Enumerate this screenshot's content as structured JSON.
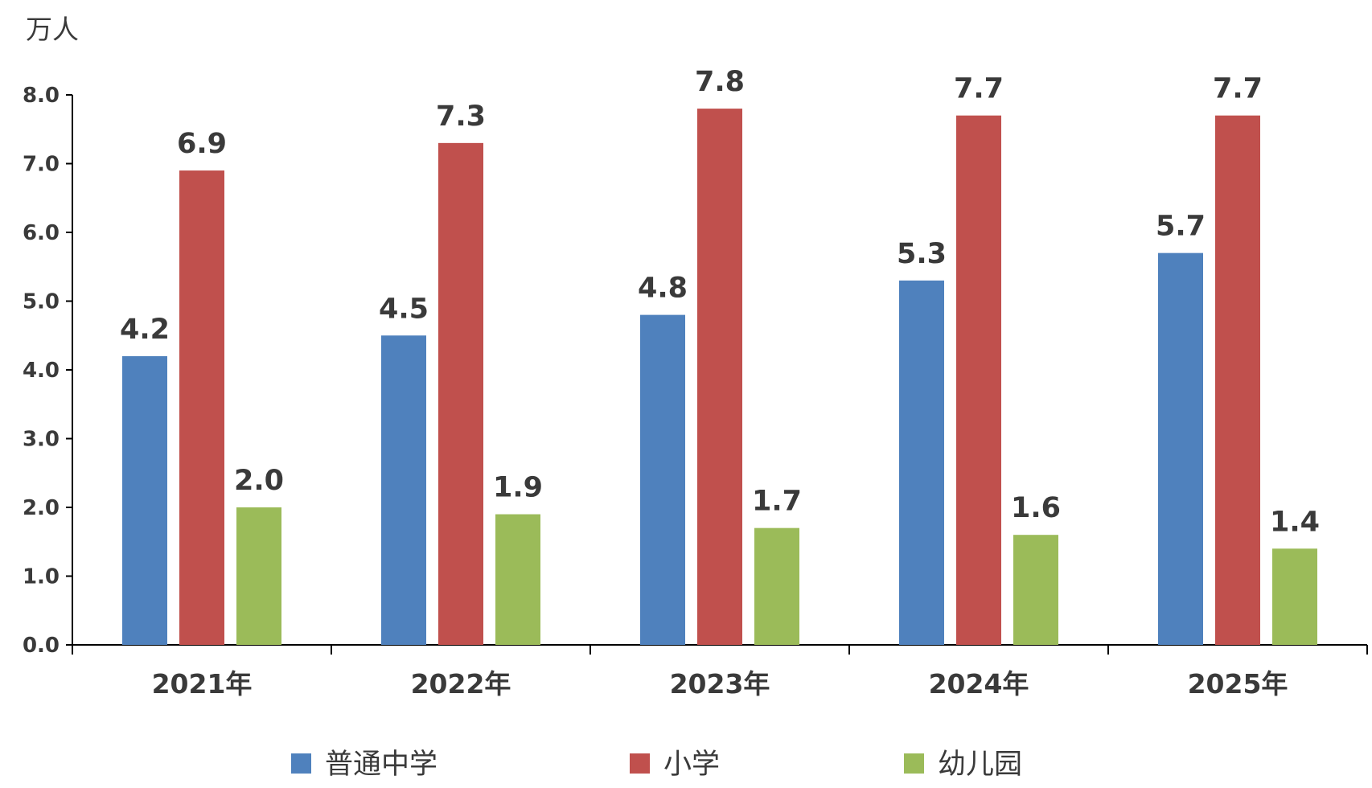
{
  "chart_data": {
    "type": "bar",
    "ylabel": "万人",
    "ylim": [
      0,
      8
    ],
    "yticks": [
      "0.0",
      "1.0",
      "2.0",
      "3.0",
      "4.0",
      "5.0",
      "6.0",
      "7.0",
      "8.0"
    ],
    "categories": [
      "2021年",
      "2022年",
      "2023年",
      "2024年",
      "2025年"
    ],
    "series": [
      {
        "name": "普通中学",
        "color": "#4f81bd",
        "values": [
          4.2,
          4.5,
          4.8,
          5.3,
          5.7
        ],
        "labels": [
          "4.2",
          "4.5",
          "4.8",
          "5.3",
          "5.7"
        ]
      },
      {
        "name": "小学",
        "color": "#c0504d",
        "values": [
          6.9,
          7.3,
          7.8,
          7.7,
          7.7
        ],
        "labels": [
          "6.9",
          "7.3",
          "7.8",
          "7.7",
          "7.7"
        ]
      },
      {
        "name": "幼儿园",
        "color": "#9bbb59",
        "values": [
          2.0,
          1.9,
          1.7,
          1.6,
          1.4
        ],
        "labels": [
          "2.0",
          "1.9",
          "1.7",
          "1.6",
          "1.4"
        ]
      }
    ],
    "legend": "bottom",
    "grid": false
  }
}
